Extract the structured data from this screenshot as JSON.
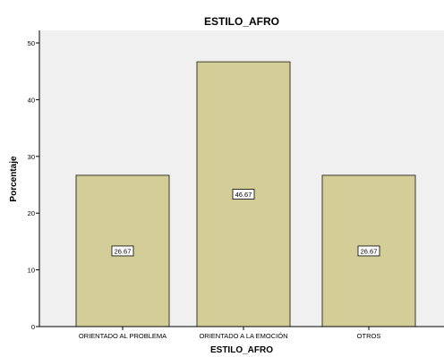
{
  "colors": {
    "plot_background": "#f0f0f0",
    "bar_fill": "#d3ce97",
    "bar_stroke": "#3a3a2a",
    "label_box_fill": "#ffffff"
  },
  "chart_data": {
    "type": "bar",
    "title": "ESTILO_AFRO",
    "xlabel": "ESTILO_AFRO",
    "ylabel": "Porcentaje",
    "categories": [
      "ORIENTADO AL PROBLEMA",
      "ORIENTADO A LA EMOCIÓN",
      "OTROS"
    ],
    "values": [
      26.67,
      46.67,
      26.67
    ],
    "data_labels": [
      "26.67",
      "46.67",
      "26.67"
    ],
    "ylim": [
      0,
      50
    ],
    "yticks": [
      0,
      10,
      20,
      30,
      40,
      50
    ],
    "grid": false,
    "legend": "none"
  }
}
